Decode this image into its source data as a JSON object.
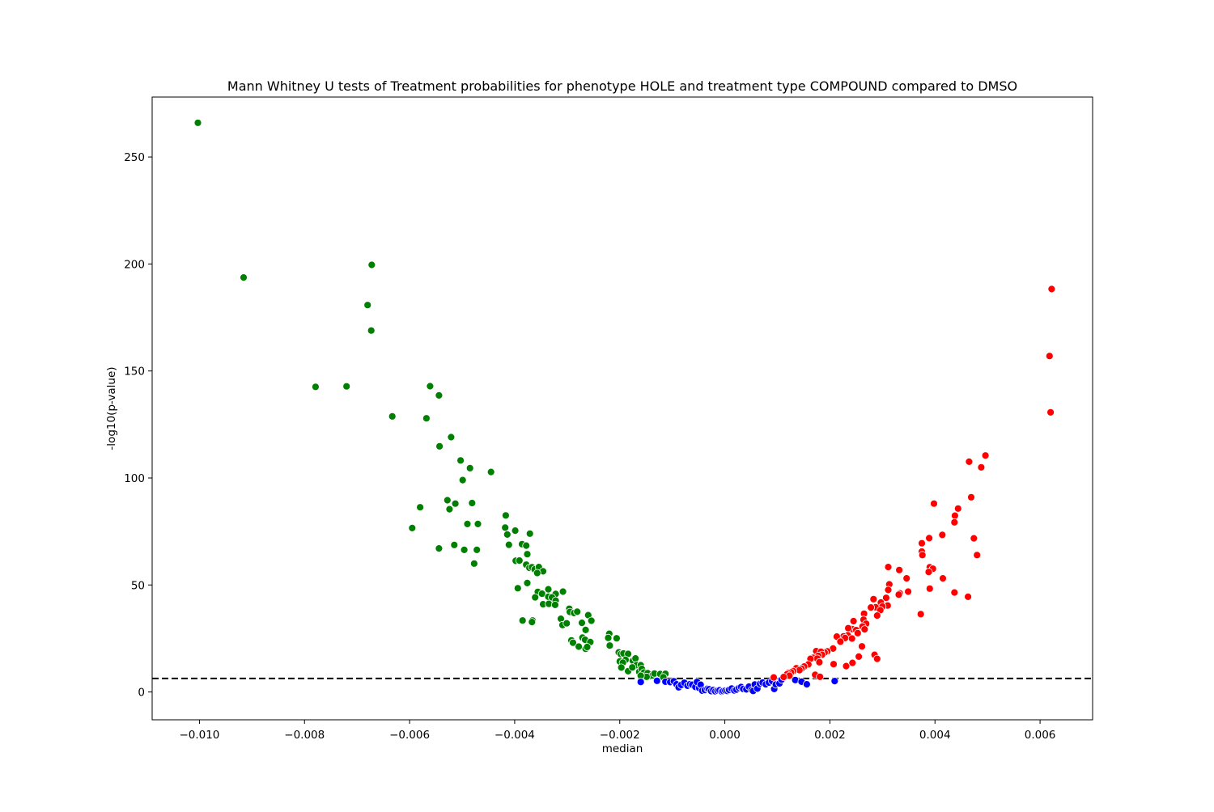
{
  "chart_data": {
    "type": "scatter",
    "title": "Mann Whitney U tests of Treatment probabilities for phenotype HOLE and treatment type COMPOUND compared to DMSO",
    "xlabel": "median",
    "ylabel": "-log10(p-value)",
    "xlim": [
      -0.0109,
      0.007
    ],
    "ylim": [
      -13,
      278
    ],
    "xticks": [
      {
        "value": -0.01,
        "label": "−0.010"
      },
      {
        "value": -0.008,
        "label": "−0.008"
      },
      {
        "value": -0.006,
        "label": "−0.006"
      },
      {
        "value": -0.004,
        "label": "−0.004"
      },
      {
        "value": -0.002,
        "label": "−0.002"
      },
      {
        "value": 0.0,
        "label": "0.000"
      },
      {
        "value": 0.002,
        "label": "0.002"
      },
      {
        "value": 0.004,
        "label": "0.004"
      },
      {
        "value": 0.006,
        "label": "0.006"
      }
    ],
    "yticks": [
      {
        "value": 0,
        "label": "0"
      },
      {
        "value": 50,
        "label": "50"
      },
      {
        "value": 100,
        "label": "100"
      },
      {
        "value": 150,
        "label": "150"
      },
      {
        "value": 200,
        "label": "200"
      },
      {
        "value": 250,
        "label": "250"
      }
    ],
    "threshold_line": {
      "y": 6.3,
      "style": "dashed",
      "color": "#000000"
    },
    "grid": false,
    "series": [
      {
        "color": "#008000",
        "points": [
          [
            -0.01003,
            266.0
          ],
          [
            -0.00916,
            193.7
          ],
          [
            -0.00779,
            142.6
          ],
          [
            -0.0072,
            142.8
          ],
          [
            -0.00672,
            199.6
          ],
          [
            -0.00673,
            168.9
          ],
          [
            -0.0068,
            180.8
          ],
          [
            -0.00633,
            128.8
          ],
          [
            -0.00561,
            142.9
          ],
          [
            -0.00544,
            138.6
          ],
          [
            -0.00568,
            127.9
          ],
          [
            -0.00521,
            119.1
          ],
          [
            -0.00543,
            114.8
          ],
          [
            -0.00503,
            108.2
          ],
          [
            -0.00485,
            104.6
          ],
          [
            -0.00445,
            102.8
          ],
          [
            -0.00499,
            99.0
          ],
          [
            -0.0058,
            86.3
          ],
          [
            -0.00595,
            76.6
          ],
          [
            -0.00528,
            89.6
          ],
          [
            -0.00524,
            85.4
          ],
          [
            -0.00513,
            88.0
          ],
          [
            -0.00481,
            88.3
          ],
          [
            -0.0049,
            78.5
          ],
          [
            -0.0047,
            78.5
          ],
          [
            -0.00544,
            67.1
          ],
          [
            -0.00515,
            68.7
          ],
          [
            -0.00496,
            66.4
          ],
          [
            -0.00472,
            66.4
          ],
          [
            -0.00477,
            60.0
          ],
          [
            -0.00417,
            82.5
          ],
          [
            -0.00418,
            76.8
          ],
          [
            -0.00414,
            73.6
          ],
          [
            -0.00399,
            75.4
          ],
          [
            -0.00371,
            74.0
          ],
          [
            -0.00411,
            68.8
          ],
          [
            -0.00386,
            69.1
          ],
          [
            -0.00378,
            68.4
          ],
          [
            -0.00398,
            61.3
          ],
          [
            -0.00391,
            61.4
          ],
          [
            -0.00376,
            64.4
          ],
          [
            -0.00378,
            59.5
          ],
          [
            -0.00372,
            58.0
          ],
          [
            -0.00367,
            58.3
          ],
          [
            -0.00362,
            57.3
          ],
          [
            -0.00354,
            58.4
          ],
          [
            -0.00346,
            56.4
          ],
          [
            -0.00357,
            55.6
          ],
          [
            -0.00376,
            50.9
          ],
          [
            -0.00394,
            48.5
          ],
          [
            -0.00336,
            48.0
          ],
          [
            -0.00356,
            46.8
          ],
          [
            -0.00348,
            45.9
          ],
          [
            -0.00322,
            45.8
          ],
          [
            -0.00308,
            46.9
          ],
          [
            -0.00336,
            44.5
          ],
          [
            -0.00329,
            44.2
          ],
          [
            -0.00361,
            44.2
          ],
          [
            -0.00322,
            42.7
          ],
          [
            -0.00346,
            41.0
          ],
          [
            -0.00335,
            41.2
          ],
          [
            -0.00323,
            40.7
          ],
          [
            -0.00296,
            38.9
          ],
          [
            -0.00295,
            37.4
          ],
          [
            -0.00287,
            36.9
          ],
          [
            -0.00281,
            37.5
          ],
          [
            -0.0026,
            35.9
          ],
          [
            -0.00254,
            33.3
          ],
          [
            -0.00312,
            34.2
          ],
          [
            -0.00309,
            31.3
          ],
          [
            -0.00301,
            32.1
          ],
          [
            -0.00385,
            33.4
          ],
          [
            -0.00366,
            33.4
          ],
          [
            -0.00367,
            32.7
          ],
          [
            -0.00272,
            32.3
          ],
          [
            -0.00265,
            29.0
          ],
          [
            -0.0022,
            27.2
          ],
          [
            -0.00222,
            25.3
          ],
          [
            -0.00206,
            25.1
          ],
          [
            -0.00292,
            24.1
          ],
          [
            -0.00289,
            23.0
          ],
          [
            -0.00271,
            25.4
          ],
          [
            -0.00266,
            24.4
          ],
          [
            -0.00256,
            23.3
          ],
          [
            -0.00278,
            21.2
          ],
          [
            -0.00265,
            20.2
          ],
          [
            -0.00262,
            21.0
          ],
          [
            -0.00219,
            21.7
          ],
          [
            -0.00202,
            18.5
          ],
          [
            -0.00198,
            17.7
          ],
          [
            -0.00193,
            18.0
          ],
          [
            -0.00184,
            17.8
          ],
          [
            -0.00189,
            15.0
          ],
          [
            -0.00175,
            14.6
          ],
          [
            -0.0017,
            15.7
          ],
          [
            -0.00168,
            12.6
          ],
          [
            -0.0016,
            12.5
          ],
          [
            -0.002,
            14.3
          ],
          [
            -0.00194,
            13.7
          ],
          [
            -0.00197,
            11.4
          ],
          [
            -0.00184,
            9.7
          ],
          [
            -0.00176,
            11.5
          ],
          [
            -0.00163,
            9.4
          ],
          [
            -0.00158,
            10.8
          ],
          [
            -0.00154,
            9.1
          ],
          [
            -0.00147,
            8.8
          ],
          [
            -0.00138,
            7.7
          ],
          [
            -0.00134,
            8.6
          ],
          [
            -0.00123,
            8.4
          ],
          [
            -0.00113,
            8.5
          ],
          [
            -0.00117,
            6.9
          ],
          [
            -0.00149,
            7.1
          ],
          [
            -0.0016,
            7.6
          ]
        ]
      },
      {
        "color": "#0000ff",
        "points": [
          [
            -0.0016,
            4.7
          ],
          [
            -0.00129,
            5.2
          ],
          [
            -0.00113,
            4.8
          ],
          [
            -0.00104,
            4.6
          ],
          [
            -0.00097,
            5.0
          ],
          [
            -0.00092,
            3.6
          ],
          [
            -0.00088,
            2.2
          ],
          [
            -0.00083,
            3.3
          ],
          [
            -0.00077,
            4.3
          ],
          [
            -0.00071,
            2.9
          ],
          [
            -0.00066,
            3.7
          ],
          [
            -0.00062,
            3.4
          ],
          [
            -0.00056,
            2.4
          ],
          [
            -0.00053,
            4.7
          ],
          [
            -0.00049,
            1.9
          ],
          [
            -0.00046,
            3.4
          ],
          [
            -0.00043,
            0.6
          ],
          [
            -0.00038,
            0.9
          ],
          [
            -0.00033,
            1.5
          ],
          [
            -0.0003,
            1.3
          ],
          [
            -0.00026,
            0.4
          ],
          [
            -0.00022,
            0.9
          ],
          [
            -0.00018,
            0.3
          ],
          [
            -0.00014,
            0.6
          ],
          [
            -0.0001,
            0.8
          ],
          [
            -6e-05,
            0.2
          ],
          [
            -3e-05,
            0.4
          ],
          [
            1e-05,
            0.6
          ],
          [
            5e-05,
            0.5
          ],
          [
            8e-05,
            1.0
          ],
          [
            0.00013,
            1.6
          ],
          [
            0.00018,
            0.7
          ],
          [
            0.00022,
            1.1
          ],
          [
            0.00027,
            1.9
          ],
          [
            0.00031,
            2.3
          ],
          [
            0.00035,
            1.4
          ],
          [
            0.00041,
            1.2
          ],
          [
            0.00046,
            2.5
          ],
          [
            0.00051,
            0.9
          ],
          [
            0.00054,
            0.5
          ],
          [
            0.00057,
            3.5
          ],
          [
            0.00062,
            1.6
          ],
          [
            0.00067,
            3.8
          ],
          [
            0.00072,
            4.4
          ],
          [
            0.00078,
            3.6
          ],
          [
            0.00084,
            4.4
          ],
          [
            0.0009,
            5.1
          ],
          [
            0.00094,
            1.4
          ],
          [
            0.00097,
            3.5
          ],
          [
            0.00104,
            4.0
          ],
          [
            0.00108,
            5.8
          ],
          [
            0.00134,
            5.6
          ],
          [
            0.00146,
            4.8
          ],
          [
            0.00156,
            3.6
          ],
          [
            0.00209,
            5.1
          ]
        ]
      },
      {
        "color": "#ff0000",
        "points": [
          [
            0.00622,
            188.3
          ],
          [
            0.00618,
            157.0
          ],
          [
            0.0062,
            130.7
          ],
          [
            0.00496,
            110.5
          ],
          [
            0.00465,
            107.6
          ],
          [
            0.00488,
            105.0
          ],
          [
            0.00469,
            91.0
          ],
          [
            0.00398,
            88.0
          ],
          [
            0.00444,
            85.7
          ],
          [
            0.00438,
            82.4
          ],
          [
            0.00437,
            79.3
          ],
          [
            0.00414,
            73.4
          ],
          [
            0.00474,
            71.8
          ],
          [
            0.00389,
            71.9
          ],
          [
            0.00375,
            69.5
          ],
          [
            0.00375,
            65.6
          ],
          [
            0.00376,
            64.0
          ],
          [
            0.0048,
            64.0
          ],
          [
            0.0039,
            58.3
          ],
          [
            0.00396,
            57.6
          ],
          [
            0.00388,
            56.1
          ],
          [
            0.00415,
            53.1
          ],
          [
            0.00311,
            58.4
          ],
          [
            0.00332,
            57.0
          ],
          [
            0.00346,
            53.1
          ],
          [
            0.00313,
            50.3
          ],
          [
            0.00311,
            47.7
          ],
          [
            0.0039,
            48.3
          ],
          [
            0.00349,
            46.9
          ],
          [
            0.00333,
            46.1
          ],
          [
            0.00331,
            45.5
          ],
          [
            0.00437,
            46.5
          ],
          [
            0.00463,
            44.5
          ],
          [
            0.00307,
            44.0
          ],
          [
            0.00297,
            41.8
          ],
          [
            0.0031,
            40.4
          ],
          [
            0.003,
            39.9
          ],
          [
            0.00287,
            39.6
          ],
          [
            0.00278,
            39.5
          ],
          [
            0.00296,
            38.2
          ],
          [
            0.00283,
            43.4
          ],
          [
            0.00373,
            36.4
          ],
          [
            0.0029,
            35.7
          ],
          [
            0.00265,
            36.6
          ],
          [
            0.00264,
            33.8
          ],
          [
            0.00245,
            33.1
          ],
          [
            0.00269,
            31.9
          ],
          [
            0.00262,
            30.6
          ],
          [
            0.00266,
            29.3
          ],
          [
            0.00242,
            29.4
          ],
          [
            0.00235,
            29.8
          ],
          [
            0.0025,
            28.9
          ],
          [
            0.00253,
            27.5
          ],
          [
            0.00234,
            26.5
          ],
          [
            0.00226,
            26.0
          ],
          [
            0.00213,
            25.9
          ],
          [
            0.00229,
            25.2
          ],
          [
            0.00242,
            25.0
          ],
          [
            0.0022,
            23.5
          ],
          [
            0.00261,
            21.3
          ],
          [
            0.00206,
            20.3
          ],
          [
            0.00195,
            19.0
          ],
          [
            0.0019,
            18.4
          ],
          [
            0.00174,
            19.1
          ],
          [
            0.00183,
            18.8
          ],
          [
            0.00185,
            17.4
          ],
          [
            0.00178,
            16.9
          ],
          [
            0.00168,
            16.0
          ],
          [
            0.00176,
            15.6
          ],
          [
            0.00163,
            15.5
          ],
          [
            0.00285,
            17.4
          ],
          [
            0.0029,
            15.5
          ],
          [
            0.00255,
            16.5
          ],
          [
            0.0018,
            13.9
          ],
          [
            0.00207,
            13.0
          ],
          [
            0.00231,
            12.1
          ],
          [
            0.00243,
            13.6
          ],
          [
            0.00159,
            12.9
          ],
          [
            0.00151,
            11.9
          ],
          [
            0.00136,
            11.1
          ],
          [
            0.00146,
            10.9
          ],
          [
            0.00142,
            10.2
          ],
          [
            0.0013,
            9.8
          ],
          [
            0.00126,
            9.2
          ],
          [
            0.0012,
            8.8
          ],
          [
            0.00118,
            8.2
          ],
          [
            0.00123,
            7.6
          ],
          [
            0.00112,
            7.0
          ],
          [
            0.00093,
            6.8
          ],
          [
            0.00172,
            8.0
          ],
          [
            0.00181,
            7.1
          ]
        ]
      }
    ]
  }
}
